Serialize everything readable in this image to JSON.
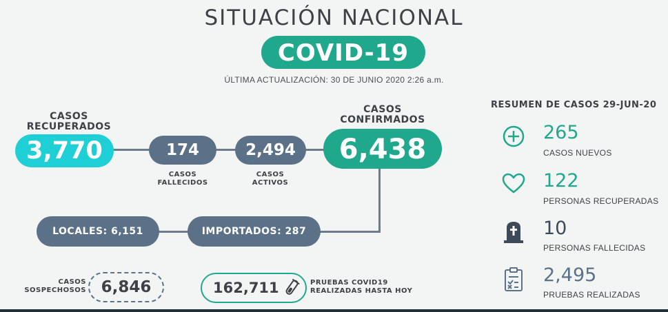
{
  "header": {
    "title": "SITUACIÓN NACIONAL",
    "badge": "COVID-19",
    "updated": "ÚLTIMA ACTUALIZACIÓN: 30 DE JUNIO 2020 2:26 a.m."
  },
  "flow": {
    "recovered": {
      "label_line1": "CASOS",
      "label_line2": "RECUPERADOS",
      "value": "3,770"
    },
    "deaths": {
      "value": "174",
      "label_line1": "CASOS",
      "label_line2": "FALLECIDOS"
    },
    "active": {
      "value": "2,494",
      "label_line1": "CASOS",
      "label_line2": "ACTIVOS"
    },
    "confirmed": {
      "label_line1": "CASOS",
      "label_line2": "CONFIRMADOS",
      "value": "6,438"
    },
    "local": "LOCALES: 6,151",
    "imported": "IMPORTADOS: 287",
    "suspected": {
      "label_line1": "CASOS",
      "label_line2": "SOSPECHOSOS",
      "value": "6,846"
    },
    "tests": {
      "value": "162,711",
      "label_line1": "PRUEBAS COVID19",
      "label_line2": "REALIZADAS HASTA HOY"
    }
  },
  "summary": {
    "title": "RESUMEN DE CASOS 29-JUN-20",
    "items": [
      {
        "icon": "plus-circle-icon",
        "value": "265",
        "label": "CASOS NUEVOS",
        "color": "#1fa88c"
      },
      {
        "icon": "heart-icon",
        "value": "122",
        "label": "PERSONAS RECUPERADAS",
        "color": "#1fa88c"
      },
      {
        "icon": "tombstone-icon",
        "value": "10",
        "label": "PERSONAS FALLECIDAS",
        "color": "#3d4a57"
      },
      {
        "icon": "clipboard-icon",
        "value": "2,495",
        "label": "PRUEBAS REALIZADAS",
        "color": "#5a7188"
      }
    ]
  },
  "colors": {
    "teal": "#1fa88c",
    "cyan": "#1fcfd6",
    "slate": "#5a7188",
    "background": "#f3f4f4"
  }
}
